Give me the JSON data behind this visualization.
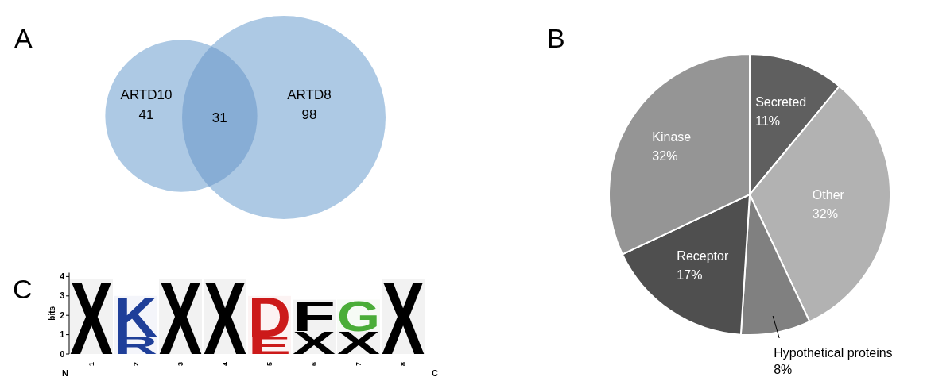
{
  "chart_data": [
    {
      "type": "other",
      "title": "A",
      "categories": [
        "ARTD10",
        null,
        "ARTD8"
      ],
      "values": [
        41,
        31,
        98
      ],
      "colors": [
        "#adc9e4",
        "#87add5",
        "#adc9e4"
      ],
      "data_labels": true
    },
    {
      "type": "pie",
      "title": "B",
      "categories": [
        "Secreted",
        "Other",
        "Hypothetical proteins",
        "Receptor",
        "Kinase"
      ],
      "values": [
        11,
        32,
        8,
        17,
        32
      ],
      "value_labels": [
        "11%",
        "32%",
        "8%",
        "17%",
        "32%"
      ],
      "colors": [
        "#5f5f5f",
        "#b2b2b2",
        "#808080",
        "#4f4f4f",
        "#959595"
      ]
    },
    {
      "type": "bar",
      "title": "C",
      "stacked": true,
      "categories": [
        "1",
        "2",
        "3",
        "4",
        "5",
        "6",
        "7",
        "8"
      ],
      "ylabel": "bits",
      "ylim": [
        0,
        4.2
      ],
      "yticks": [
        0,
        1,
        2,
        3,
        4
      ],
      "annotations": [
        "N",
        "C"
      ],
      "series": [
        {
          "values": [
            3.85,
            0.9,
            3.85,
            3.85,
            0.9,
            1.2,
            1.2,
            3.85
          ],
          "value_labels": [
            "X",
            "R",
            "X",
            "X",
            "E",
            "X",
            "X",
            "X"
          ],
          "colors": [
            "#000000",
            "#1f3f99",
            "#000000",
            "#000000",
            "#cc1a1a",
            "#000000",
            "#000000",
            "#000000"
          ]
        },
        {
          "values": [
            null,
            2.1,
            null,
            null,
            2.1,
            1.6,
            1.6,
            null
          ],
          "value_labels": [
            null,
            "K",
            null,
            null,
            "D",
            "F",
            "G",
            null
          ],
          "colors": [
            null,
            "#1f3f99",
            null,
            null,
            "#cc1a1a",
            "#000000",
            "#4aad38",
            null
          ]
        }
      ]
    }
  ]
}
